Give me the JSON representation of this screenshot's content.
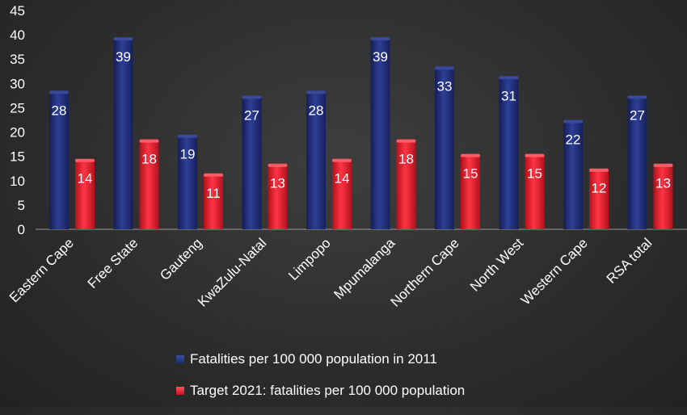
{
  "chart_data": {
    "type": "bar",
    "categories": [
      "Eastern Cape",
      "Free State",
      "Gauteng",
      "KwaZulu-Natal",
      "Limpopo",
      "Mpumalanga",
      "Northern Cape",
      "North West",
      "Western Cape",
      "RSA total"
    ],
    "series": [
      {
        "name": "Fatalities per 100 000 population in 2011",
        "values": [
          28,
          39,
          19,
          27,
          28,
          39,
          33,
          31,
          22,
          27
        ],
        "labels": [
          "28",
          "39",
          "19",
          "27",
          "28",
          "39",
          "33",
          "31",
          "22",
          "27"
        ],
        "color": "#1f2d78"
      },
      {
        "name": "Target 2021: fatalities per 100 000 population",
        "values": [
          14,
          18,
          11,
          13,
          14,
          18,
          15,
          15,
          12,
          13
        ],
        "labels": [
          "14",
          "18",
          "11",
          "13",
          "14",
          "18",
          "15",
          "15",
          "12",
          "13"
        ],
        "color": "#e01b2a"
      }
    ],
    "ylim": [
      0,
      45
    ],
    "yticks": [
      "0",
      "5",
      "10",
      "15",
      "20",
      "25",
      "30",
      "35",
      "40",
      "45"
    ],
    "grid": false,
    "legend_position": "bottom"
  }
}
